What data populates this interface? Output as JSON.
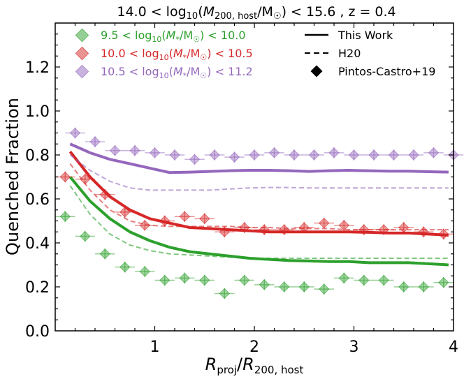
{
  "chart_data": {
    "type": "line",
    "title": "14.0 < log10(M200, host/M☉) < 15.6 , z = 0.4",
    "xlabel": "Rproj/R200, host",
    "ylabel": "Quenched Fraction",
    "xlim": [
      0.0,
      4.0
    ],
    "ylim": [
      0.0,
      1.4
    ],
    "xticks": [
      1,
      2,
      3,
      4
    ],
    "yticks": [
      0.0,
      0.2,
      0.4,
      0.6,
      0.8,
      1.0,
      1.2
    ],
    "colors": {
      "green": "#2ca02c",
      "red": "#d62728",
      "purple": "#9467bd"
    },
    "legend_mass": [
      {
        "text": "9.5 < log10(M*/M☉) < 10.0",
        "color": "#2ca02c"
      },
      {
        "text": "10.0 < log10(M*/M☉) < 10.5",
        "color": "#d62728"
      },
      {
        "text": "10.5 < log10(M*/M☉) < 11.2",
        "color": "#9467bd"
      }
    ],
    "legend_style": [
      {
        "text": "This Work",
        "marker": "solid-line"
      },
      {
        "text": "H20",
        "marker": "dashed-line"
      },
      {
        "text": "Pintos-Castro+19",
        "marker": "diamond"
      }
    ],
    "series": [
      {
        "color": "#2ca02c",
        "this_work": {
          "x": [
            0.15,
            0.35,
            0.55,
            0.75,
            0.95,
            1.15,
            1.35,
            1.55,
            1.75,
            1.95,
            2.15,
            2.35,
            2.55,
            2.75,
            2.95,
            3.15,
            3.35,
            3.55,
            3.75,
            3.95
          ],
          "y": [
            0.7,
            0.59,
            0.51,
            0.45,
            0.41,
            0.38,
            0.36,
            0.35,
            0.34,
            0.33,
            0.325,
            0.32,
            0.318,
            0.315,
            0.315,
            0.31,
            0.31,
            0.31,
            0.305,
            0.3
          ]
        },
        "h20": {
          "x": [
            0.15,
            0.35,
            0.55,
            0.75,
            0.95,
            1.15,
            1.35,
            1.55,
            1.75,
            1.95,
            2.15,
            2.35,
            2.55,
            2.75,
            2.95,
            3.15,
            3.35,
            3.55,
            3.75,
            3.95
          ],
          "y": [
            0.66,
            0.53,
            0.44,
            0.39,
            0.365,
            0.35,
            0.345,
            0.34,
            0.335,
            0.33,
            0.33,
            0.33,
            0.33,
            0.33,
            0.33,
            0.33,
            0.33,
            0.33,
            0.33,
            0.33
          ]
        },
        "pintos_castro": {
          "x": [
            0.1,
            0.3,
            0.5,
            0.7,
            0.9,
            1.1,
            1.3,
            1.5,
            1.7,
            1.9,
            2.1,
            2.3,
            2.5,
            2.7,
            2.9,
            3.1,
            3.3,
            3.5,
            3.7,
            3.9
          ],
          "y": [
            0.52,
            0.43,
            0.35,
            0.29,
            0.27,
            0.23,
            0.24,
            0.23,
            0.17,
            0.23,
            0.21,
            0.2,
            0.2,
            0.19,
            0.24,
            0.23,
            0.23,
            0.2,
            0.2,
            0.22
          ],
          "xerr": 0.1,
          "yerr": 0.025
        }
      },
      {
        "color": "#d62728",
        "this_work": {
          "x": [
            0.15,
            0.35,
            0.55,
            0.75,
            0.95,
            1.15,
            1.35,
            1.55,
            1.75,
            1.95,
            2.15,
            2.35,
            2.55,
            2.75,
            2.95,
            3.15,
            3.35,
            3.55,
            3.75,
            3.95
          ],
          "y": [
            0.815,
            0.7,
            0.61,
            0.55,
            0.51,
            0.49,
            0.47,
            0.465,
            0.46,
            0.455,
            0.45,
            0.45,
            0.45,
            0.45,
            0.45,
            0.448,
            0.445,
            0.445,
            0.44,
            0.435
          ]
        },
        "h20": {
          "x": [
            0.15,
            0.35,
            0.55,
            0.75,
            0.95,
            1.15,
            1.35,
            1.55,
            1.75,
            1.95,
            2.15,
            2.35,
            2.55,
            2.75,
            2.95,
            3.15,
            3.35,
            3.55,
            3.75,
            3.95
          ],
          "y": [
            0.76,
            0.64,
            0.55,
            0.5,
            0.48,
            0.475,
            0.475,
            0.475,
            0.475,
            0.47,
            0.47,
            0.465,
            0.465,
            0.465,
            0.46,
            0.46,
            0.46,
            0.46,
            0.46,
            0.46
          ]
        },
        "pintos_castro": {
          "x": [
            0.1,
            0.3,
            0.5,
            0.7,
            0.9,
            1.1,
            1.3,
            1.5,
            1.7,
            1.9,
            2.1,
            2.3,
            2.5,
            2.7,
            2.9,
            3.1,
            3.3,
            3.5,
            3.7,
            3.9
          ],
          "y": [
            0.7,
            0.69,
            0.62,
            0.54,
            0.48,
            0.5,
            0.52,
            0.51,
            0.45,
            0.47,
            0.46,
            0.46,
            0.47,
            0.49,
            0.48,
            0.46,
            0.46,
            0.47,
            0.45,
            0.44
          ],
          "xerr": 0.1,
          "yerr": 0.025
        }
      },
      {
        "color": "#9467bd",
        "this_work": {
          "x": [
            0.15,
            0.35,
            0.55,
            0.75,
            0.95,
            1.15,
            1.35,
            1.55,
            1.75,
            1.95,
            2.15,
            2.35,
            2.55,
            2.75,
            2.95,
            3.15,
            3.35,
            3.55,
            3.75,
            3.95
          ],
          "y": [
            0.85,
            0.81,
            0.78,
            0.76,
            0.74,
            0.72,
            0.722,
            0.725,
            0.728,
            0.73,
            0.73,
            0.728,
            0.725,
            0.728,
            0.73,
            0.728,
            0.726,
            0.726,
            0.724,
            0.722
          ]
        },
        "h20": {
          "x": [
            0.15,
            0.35,
            0.55,
            0.75,
            0.95,
            1.15,
            1.35,
            1.55,
            1.75,
            1.95,
            2.15,
            2.35,
            2.55,
            2.75,
            2.95,
            3.15,
            3.35,
            3.55,
            3.75,
            3.95
          ],
          "y": [
            0.8,
            0.73,
            0.68,
            0.65,
            0.64,
            0.64,
            0.64,
            0.64,
            0.645,
            0.65,
            0.652,
            0.652,
            0.65,
            0.65,
            0.65,
            0.65,
            0.65,
            0.65,
            0.65,
            0.65
          ]
        },
        "pintos_castro": {
          "x": [
            0.2,
            0.4,
            0.6,
            0.8,
            1.0,
            1.2,
            1.4,
            1.6,
            1.8,
            2.0,
            2.2,
            2.4,
            2.6,
            2.8,
            3.0,
            3.2,
            3.4,
            3.6,
            3.8,
            4.0
          ],
          "y": [
            0.9,
            0.86,
            0.82,
            0.82,
            0.81,
            0.8,
            0.78,
            0.8,
            0.79,
            0.8,
            0.81,
            0.8,
            0.8,
            0.81,
            0.8,
            0.8,
            0.8,
            0.8,
            0.81,
            0.8
          ],
          "xerr": 0.1,
          "yerr": 0.025
        }
      }
    ]
  }
}
